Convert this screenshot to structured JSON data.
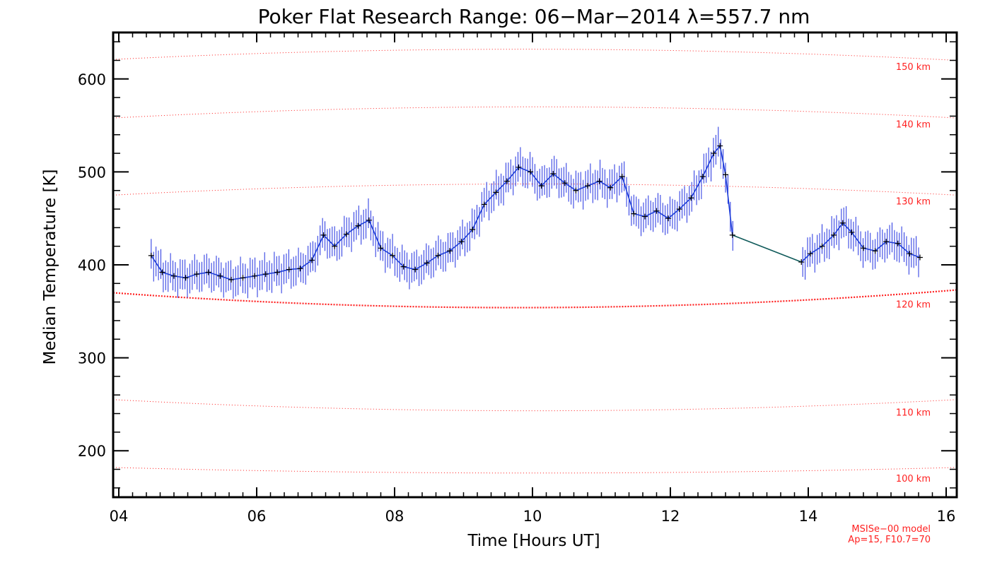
{
  "chart_data": {
    "type": "line",
    "title": "Poker Flat Research Range: 06−Mar−2014 λ=557.7 nm",
    "xlabel": "Time [Hours UT]",
    "ylabel": "Median Temperature [K]",
    "xlim": [
      4,
      16
    ],
    "ylim": [
      150,
      650
    ],
    "x_ticks": [
      4,
      6,
      8,
      10,
      12,
      14,
      16
    ],
    "x_tick_labels": [
      "04",
      "06",
      "08",
      "10",
      "12",
      "14",
      "16"
    ],
    "y_ticks": [
      200,
      300,
      400,
      500,
      600
    ],
    "y_tick_labels": [
      "200",
      "300",
      "400",
      "500",
      "600"
    ],
    "grid": false,
    "colors": {
      "measurement_line": "#1f3fd8",
      "error_bars": "#2030e0",
      "markers": "#000000",
      "gap_line": "#0f5a5a",
      "model_curves": "#ff2020"
    },
    "series": [
      {
        "error_bar": 16,
        "x": [
          4.47,
          4.63,
          4.8,
          4.97,
          5.13,
          5.3,
          5.47,
          5.63,
          5.8,
          5.97,
          6.13,
          6.3,
          6.47,
          6.63,
          6.8,
          6.97,
          7.13,
          7.3,
          7.47,
          7.63,
          7.8,
          7.97,
          8.13,
          8.3,
          8.47,
          8.63,
          8.8,
          8.97,
          9.13,
          9.3,
          9.47,
          9.63,
          9.8,
          9.97,
          10.13,
          10.3,
          10.47,
          10.63,
          10.8,
          10.97,
          11.13,
          11.3,
          11.47,
          11.63,
          11.8,
          11.97,
          12.13,
          12.3,
          12.47,
          12.63,
          12.72,
          12.8,
          12.9,
          13.9,
          14.03,
          14.2,
          14.37,
          14.5,
          14.63,
          14.8,
          14.97,
          15.13,
          15.3,
          15.47,
          15.62
        ],
        "values": [
          410,
          392,
          388,
          386,
          390,
          392,
          388,
          384,
          386,
          388,
          390,
          392,
          395,
          396,
          405,
          432,
          420,
          433,
          442,
          448,
          418,
          410,
          398,
          395,
          402,
          410,
          415,
          425,
          438,
          465,
          478,
          490,
          505,
          500,
          485,
          498,
          488,
          480,
          485,
          490,
          483,
          495,
          455,
          452,
          458,
          450,
          460,
          472,
          495,
          520,
          528,
          497,
          432,
          403,
          412,
          420,
          432,
          445,
          435,
          418,
          415,
          425,
          423,
          412,
          408
        ]
      }
    ],
    "model_curves": [
      {
        "label": "150 km",
        "values": [
          621,
          632,
          620
        ]
      },
      {
        "label": "140 km",
        "values": [
          558,
          570,
          558
        ]
      },
      {
        "label": "130 km",
        "values": [
          475,
          487,
          475
        ]
      },
      {
        "label": "120 km",
        "values": [
          370,
          354,
          373
        ]
      },
      {
        "label": "110 km",
        "values": [
          255,
          243,
          255
        ]
      },
      {
        "label": "100 km",
        "values": [
          182,
          176,
          182
        ]
      }
    ],
    "model_note": [
      "MSISe−00 model",
      "Ap=15, F10.7=70"
    ]
  }
}
